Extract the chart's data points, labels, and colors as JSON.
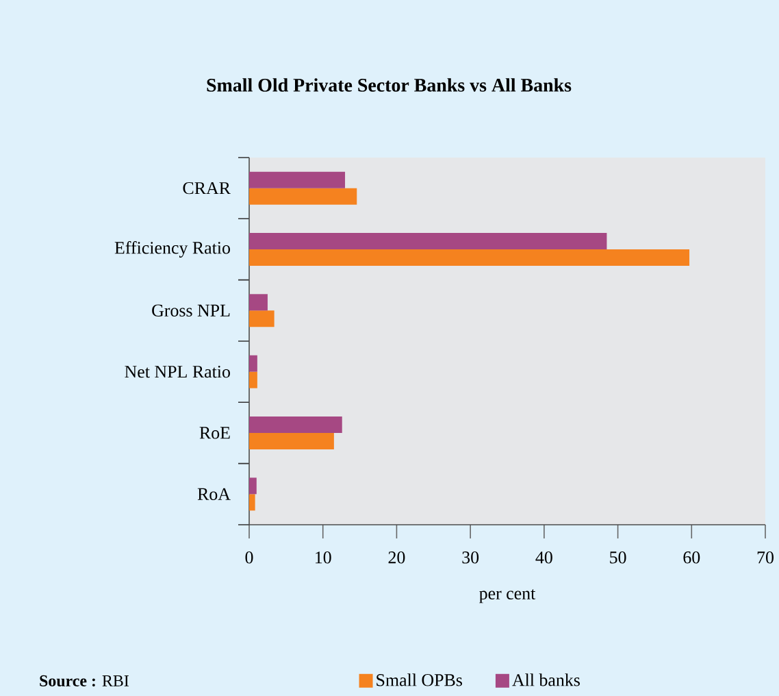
{
  "chart_data": {
    "type": "bar",
    "orientation": "horizontal",
    "title": "Small Old Private Sector Banks vs All Banks",
    "xlabel": "per cent",
    "categories": [
      "CRAR",
      "Efficiency Ratio",
      "Gross NPL",
      "Net NPL Ratio",
      "RoE",
      "RoA"
    ],
    "series": [
      {
        "name": "Small OPBs",
        "color": "#f5821f",
        "values": [
          14.6,
          59.7,
          3.4,
          1.1,
          11.5,
          0.8
        ]
      },
      {
        "name": "All banks",
        "color": "#a64883",
        "values": [
          13.0,
          48.5,
          2.5,
          1.1,
          12.6,
          1.0
        ]
      }
    ],
    "xlim": [
      0,
      70
    ],
    "xticks": [
      0,
      10,
      20,
      30,
      40,
      50,
      60,
      70
    ],
    "legend": "bottom",
    "grid": false,
    "annotations": [
      "**Source :** RBI"
    ]
  }
}
